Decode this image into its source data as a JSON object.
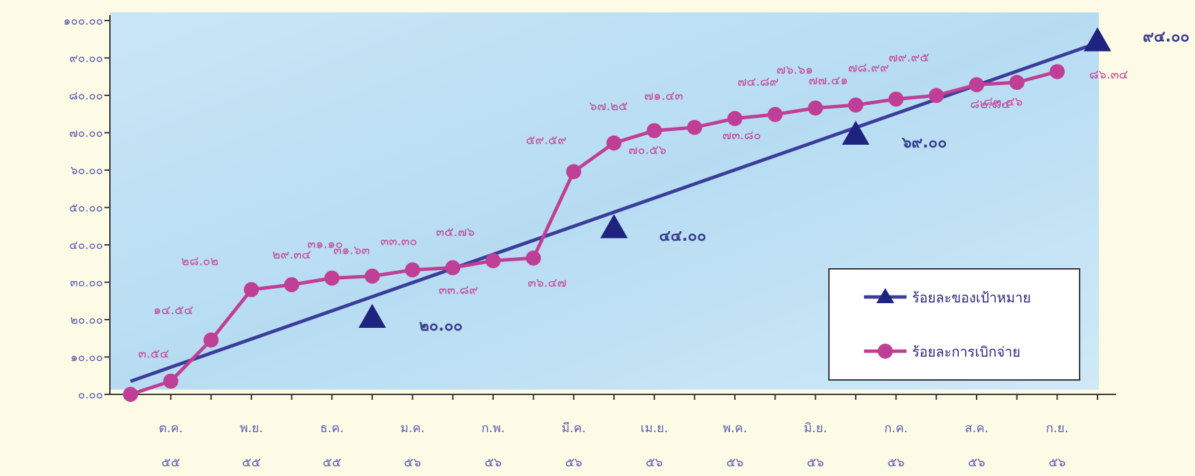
{
  "chart_data": {
    "type": "line",
    "x": [
      "ต.ค. ๕๕",
      "พ.ย. ๕๕",
      "ธ.ค. ๕๕",
      "ม.ค. ๕๖",
      "ก.พ. ๕๖",
      "มี.ค. ๕๖",
      "เม.ย. ๕๖",
      "พ.ค. ๕๖",
      "มิ.ย. ๕๖",
      "ก.ค. ๕๖",
      "ส.ค. ๕๖",
      "ก.ย. ๕๖"
    ],
    "x_labels": [
      {
        "month": "ต.ค.",
        "year": "๕๕"
      },
      {
        "month": "พ.ย.",
        "year": "๕๕"
      },
      {
        "month": "ธ.ค.",
        "year": "๕๕"
      },
      {
        "month": "ม.ค.",
        "year": "๕๖"
      },
      {
        "month": "ก.พ.",
        "year": "๕๖"
      },
      {
        "month": "มี.ค.",
        "year": "๕๖"
      },
      {
        "month": "เม.ย.",
        "year": "๕๖"
      },
      {
        "month": "พ.ค.",
        "year": "๕๖"
      },
      {
        "month": "มิ.ย.",
        "year": "๕๖"
      },
      {
        "month": "ก.ค.",
        "year": "๕๖"
      },
      {
        "month": "ส.ค.",
        "year": "๕๖"
      },
      {
        "month": "ก.ย.",
        "year": "๕๖"
      }
    ],
    "ylim": [
      0,
      100
    ],
    "y_ticks": [
      "๐.๐๐",
      "๑๐.๐๐",
      "๒๐.๐๐",
      "๓๐.๐๐",
      "๔๐.๐๐",
      "๕๐.๐๐",
      "๖๐.๐๐",
      "๗๐.๐๐",
      "๘๐.๐๐",
      "๙๐.๐๐",
      "๑๐๐.๐๐"
    ],
    "grid": false,
    "legend_position": "bottom-right",
    "series": [
      {
        "name": "ร้อยละของเป้าหมาย",
        "color": "#3b3d9a",
        "marker": "triangle",
        "points": [
          {
            "x": 3.0,
            "y": 20.0,
            "label": "๒๐.๐๐"
          },
          {
            "x": 6.0,
            "y": 44.0,
            "label": "๔๔.๐๐"
          },
          {
            "x": 9.0,
            "y": 69.0,
            "label": "๖๙.๐๐"
          },
          {
            "x": 12.0,
            "y": 94.0,
            "label": "๙๔.๐๐"
          }
        ],
        "trend_start": {
          "x": 0.0,
          "y": 3.5
        }
      },
      {
        "name": "ร้อยละการเบิกจ่าย",
        "color": "#c03f96",
        "marker": "circle",
        "points": [
          {
            "x": 0.0,
            "y": 0.0,
            "label": ""
          },
          {
            "x": 0.5,
            "y": 3.54,
            "label": "๓.๕๔"
          },
          {
            "x": 1.0,
            "y": 14.54,
            "label": "๑๔.๕๔"
          },
          {
            "x": 1.5,
            "y": 28.02,
            "label": "๒๘.๐๒"
          },
          {
            "x": 2.0,
            "y": 29.34,
            "label": "๒๙.๓๔"
          },
          {
            "x": 2.5,
            "y": 31.1,
            "label": "๓๑.๑๐"
          },
          {
            "x": 3.0,
            "y": 31.63,
            "label": "๓๑.๖๓"
          },
          {
            "x": 3.5,
            "y": 33.3,
            "label": "๓๓.๓๐"
          },
          {
            "x": 4.0,
            "y": 33.89,
            "label": "๓๓.๘๙"
          },
          {
            "x": 4.5,
            "y": 35.76,
            "label": "๓๕.๗๖"
          },
          {
            "x": 5.0,
            "y": 36.47,
            "label": "๓๖.๔๗"
          },
          {
            "x": 5.5,
            "y": 59.59,
            "label": "๕๙.๕๙"
          },
          {
            "x": 6.0,
            "y": 67.25,
            "label": "๖๗.๒๕"
          },
          {
            "x": 6.5,
            "y": 70.56,
            "label": "๗๐.๕๖"
          },
          {
            "x": 7.0,
            "y": 71.43,
            "label": "๗๑.๔๓"
          },
          {
            "x": 7.5,
            "y": 73.8,
            "label": "๗๓.๘๐"
          },
          {
            "x": 8.0,
            "y": 74.89,
            "label": "๗๔.๘๙"
          },
          {
            "x": 8.5,
            "y": 76.61,
            "label": "๗๖.๖๑"
          },
          {
            "x": 9.0,
            "y": 77.41,
            "label": "๗๗.๔๑"
          },
          {
            "x": 9.5,
            "y": 78.99,
            "label": "๗๘.๙๙"
          },
          {
            "x": 10.0,
            "y": 79.95,
            "label": "๗๙.๙๕"
          },
          {
            "x": 10.5,
            "y": 82.84,
            "label": "๘๒.๘๔"
          },
          {
            "x": 11.0,
            "y": 83.46,
            "label": "๘๓.๔๖"
          },
          {
            "x": 11.5,
            "y": 86.34,
            "label": "๘๖.๓๔"
          }
        ]
      }
    ]
  }
}
